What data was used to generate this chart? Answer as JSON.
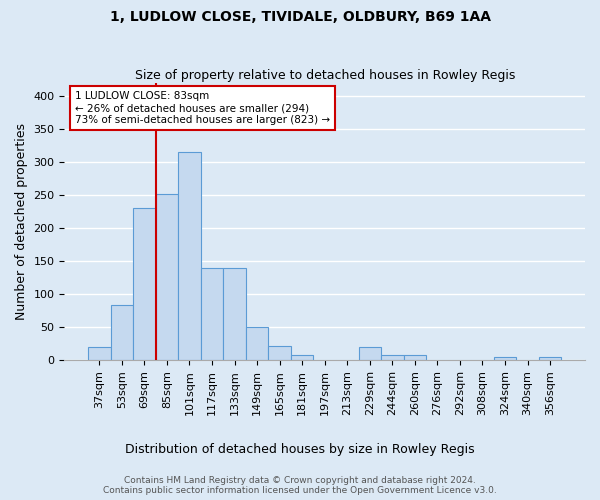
{
  "title1": "1, LUDLOW CLOSE, TIVIDALE, OLDBURY, B69 1AA",
  "title2": "Size of property relative to detached houses in Rowley Regis",
  "xlabel": "Distribution of detached houses by size in Rowley Regis",
  "ylabel": "Number of detached properties",
  "categories": [
    "37sqm",
    "53sqm",
    "69sqm",
    "85sqm",
    "101sqm",
    "117sqm",
    "133sqm",
    "149sqm",
    "165sqm",
    "181sqm",
    "197sqm",
    "213sqm",
    "229sqm",
    "244sqm",
    "260sqm",
    "276sqm",
    "292sqm",
    "308sqm",
    "324sqm",
    "340sqm",
    "356sqm"
  ],
  "bar_heights": [
    20,
    83,
    230,
    252,
    315,
    140,
    140,
    50,
    22,
    8,
    0,
    0,
    20,
    8,
    8,
    0,
    0,
    0,
    5,
    0,
    5
  ],
  "bar_color": "#c5d9ef",
  "bar_edge_color": "#5b9bd5",
  "background_color": "#dce9f5",
  "grid_color": "#ffffff",
  "annotation_line1": "1 LUDLOW CLOSE: 83sqm",
  "annotation_line2": "← 26% of detached houses are smaller (294)",
  "annotation_line3": "73% of semi-detached houses are larger (823) →",
  "red_line_bin_index": 3,
  "red_color": "#cc0000",
  "ylim_max": 420,
  "yticks": [
    0,
    50,
    100,
    150,
    200,
    250,
    300,
    350,
    400
  ],
  "footer": "Contains HM Land Registry data © Crown copyright and database right 2024.\nContains public sector information licensed under the Open Government Licence v3.0.",
  "title1_fontsize": 10,
  "title2_fontsize": 9,
  "ylabel_fontsize": 9,
  "tick_fontsize": 8,
  "footer_fontsize": 6.5
}
